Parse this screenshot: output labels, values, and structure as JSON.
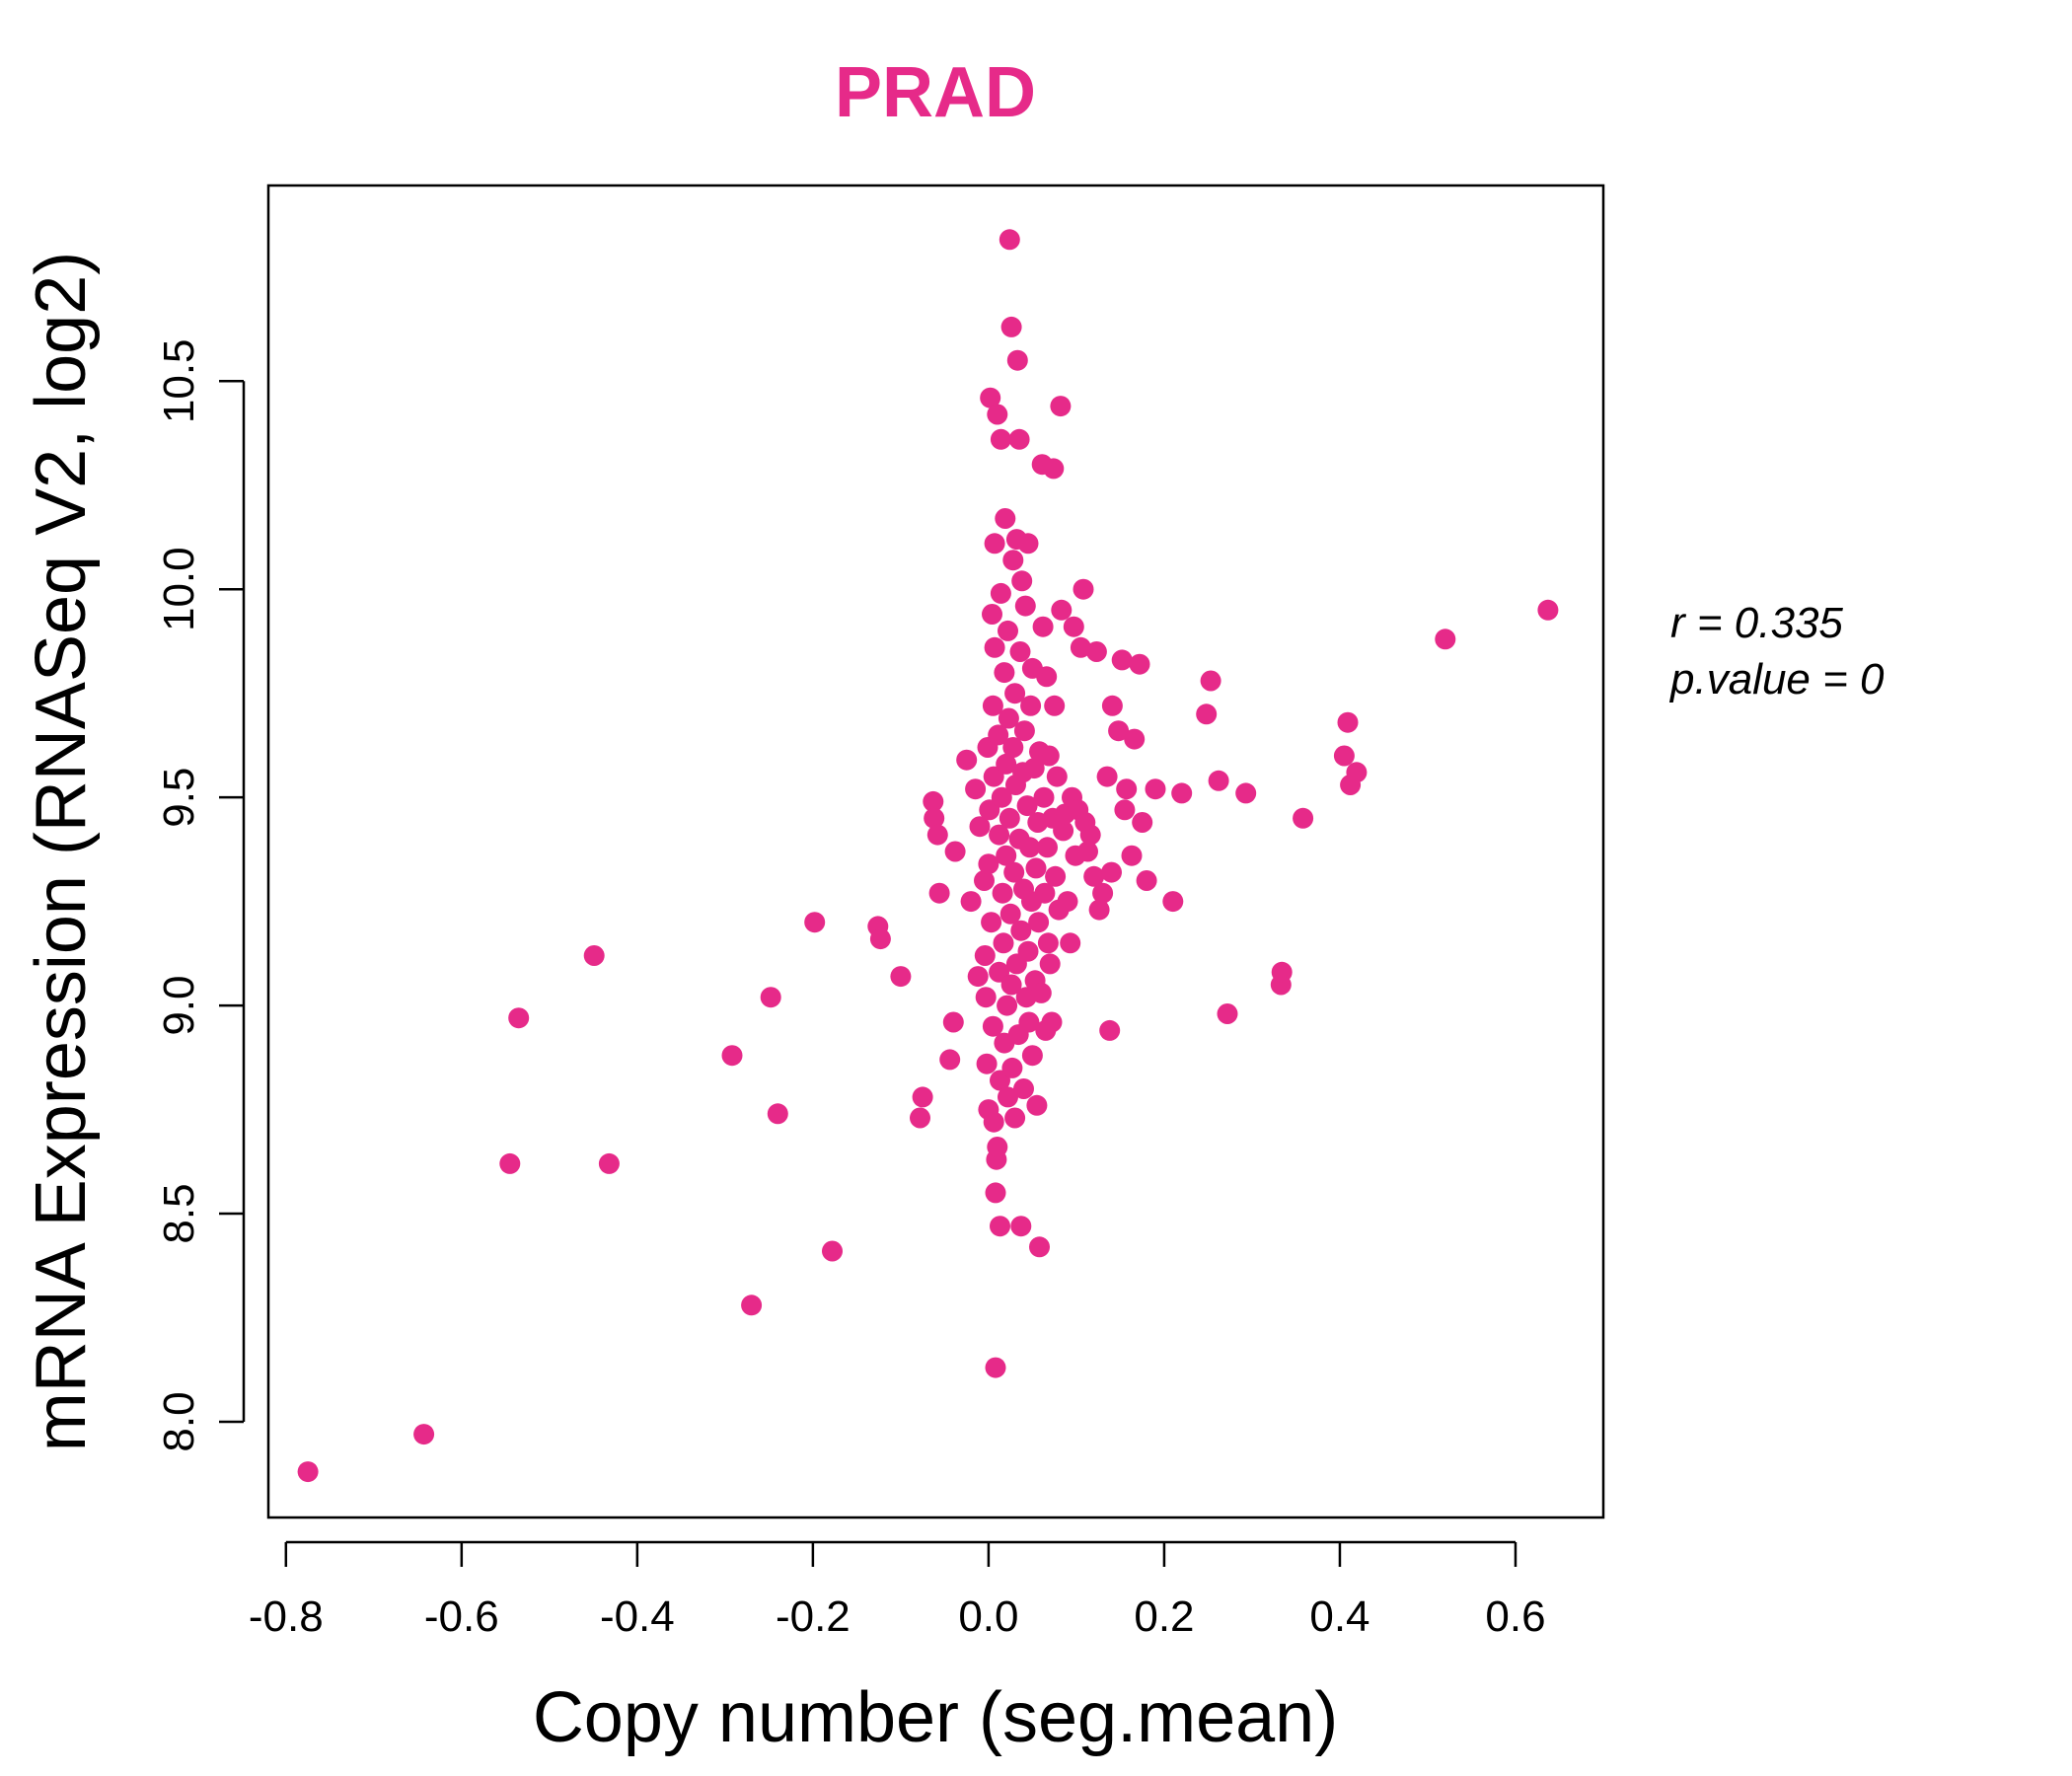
{
  "chart_data": {
    "type": "scatter",
    "title": "PRAD",
    "xlabel": "Copy number (seg.mean)",
    "ylabel": "mRNA Expression (RNASeq V2, log2)",
    "xlim": [
      -0.82,
      0.7
    ],
    "ylim": [
      7.77,
      10.97
    ],
    "xticks": [
      "-0.8",
      "-0.6",
      "-0.4",
      "-0.2",
      "0.0",
      "0.2",
      "0.4",
      "0.6"
    ],
    "yticks": [
      "8.0",
      "8.5",
      "9.0",
      "9.5",
      "10.0",
      "10.5"
    ],
    "grid": false,
    "annotations": {
      "r_label": "r = 0.335",
      "p_label": "p.value = 0"
    },
    "colors": {
      "points": "#e62a89",
      "title": "#e62a89",
      "axes": "#000000"
    },
    "points": [
      [
        -0.775,
        7.88
      ],
      [
        -0.643,
        7.97
      ],
      [
        -0.545,
        8.62
      ],
      [
        -0.535,
        8.97
      ],
      [
        -0.449,
        9.12
      ],
      [
        -0.432,
        8.62
      ],
      [
        -0.292,
        8.88
      ],
      [
        -0.27,
        8.28
      ],
      [
        -0.248,
        9.02
      ],
      [
        -0.24,
        8.74
      ],
      [
        -0.198,
        9.2
      ],
      [
        -0.178,
        8.41
      ],
      [
        -0.126,
        9.19
      ],
      [
        -0.123,
        9.16
      ],
      [
        -0.1,
        9.07
      ],
      [
        -0.078,
        8.73
      ],
      [
        -0.075,
        8.78
      ],
      [
        -0.063,
        9.49
      ],
      [
        -0.062,
        9.45
      ],
      [
        -0.058,
        9.41
      ],
      [
        -0.056,
        9.27
      ],
      [
        -0.044,
        8.87
      ],
      [
        -0.04,
        8.96
      ],
      [
        -0.038,
        9.37
      ],
      [
        -0.025,
        9.59
      ],
      [
        -0.02,
        9.25
      ],
      [
        -0.015,
        9.52
      ],
      [
        -0.012,
        9.07
      ],
      [
        -0.01,
        9.43
      ],
      [
        -0.005,
        9.3
      ],
      [
        -0.004,
        9.12
      ],
      [
        -0.003,
        9.02
      ],
      [
        -0.002,
        8.86
      ],
      [
        -0.001,
        9.62
      ],
      [
        0.0,
        8.75
      ],
      [
        0.0,
        9.34
      ],
      [
        0.001,
        9.47
      ],
      [
        0.002,
        10.46
      ],
      [
        0.003,
        9.2
      ],
      [
        0.004,
        9.94
      ],
      [
        0.005,
        9.72
      ],
      [
        0.005,
        8.95
      ],
      [
        0.006,
        9.55
      ],
      [
        0.006,
        8.72
      ],
      [
        0.007,
        10.11
      ],
      [
        0.007,
        9.86
      ],
      [
        0.008,
        8.55
      ],
      [
        0.008,
        8.13
      ],
      [
        0.009,
        8.63
      ],
      [
        0.01,
        8.66
      ],
      [
        0.01,
        10.42
      ],
      [
        0.011,
        9.65
      ],
      [
        0.012,
        9.41
      ],
      [
        0.012,
        9.08
      ],
      [
        0.013,
        8.82
      ],
      [
        0.013,
        8.47
      ],
      [
        0.014,
        9.99
      ],
      [
        0.014,
        10.36
      ],
      [
        0.015,
        9.5
      ],
      [
        0.016,
        9.27
      ],
      [
        0.017,
        9.15
      ],
      [
        0.018,
        9.8
      ],
      [
        0.018,
        8.91
      ],
      [
        0.019,
        10.17
      ],
      [
        0.02,
        9.58
      ],
      [
        0.02,
        9.36
      ],
      [
        0.021,
        9.0
      ],
      [
        0.022,
        8.78
      ],
      [
        0.022,
        9.9
      ],
      [
        0.023,
        9.69
      ],
      [
        0.024,
        9.45
      ],
      [
        0.024,
        10.84
      ],
      [
        0.025,
        9.22
      ],
      [
        0.026,
        10.63
      ],
      [
        0.026,
        9.05
      ],
      [
        0.027,
        8.85
      ],
      [
        0.028,
        10.07
      ],
      [
        0.028,
        9.62
      ],
      [
        0.029,
        9.32
      ],
      [
        0.03,
        8.73
      ],
      [
        0.03,
        9.75
      ],
      [
        0.031,
        9.53
      ],
      [
        0.032,
        10.12
      ],
      [
        0.032,
        9.1
      ],
      [
        0.033,
        10.55
      ],
      [
        0.034,
        8.93
      ],
      [
        0.035,
        9.4
      ],
      [
        0.035,
        10.36
      ],
      [
        0.036,
        9.85
      ],
      [
        0.037,
        9.18
      ],
      [
        0.037,
        8.47
      ],
      [
        0.038,
        10.02
      ],
      [
        0.039,
        9.56
      ],
      [
        0.04,
        9.28
      ],
      [
        0.04,
        8.8
      ],
      [
        0.041,
        9.66
      ],
      [
        0.042,
        9.96
      ],
      [
        0.043,
        9.02
      ],
      [
        0.044,
        9.48
      ],
      [
        0.045,
        10.11
      ],
      [
        0.045,
        9.13
      ],
      [
        0.046,
        8.96
      ],
      [
        0.047,
        9.38
      ],
      [
        0.048,
        9.72
      ],
      [
        0.049,
        9.25
      ],
      [
        0.05,
        8.88
      ],
      [
        0.05,
        9.81
      ],
      [
        0.052,
        9.57
      ],
      [
        0.053,
        9.06
      ],
      [
        0.054,
        9.33
      ],
      [
        0.055,
        8.76
      ],
      [
        0.056,
        9.44
      ],
      [
        0.057,
        9.2
      ],
      [
        0.058,
        9.61
      ],
      [
        0.058,
        8.42
      ],
      [
        0.06,
        9.03
      ],
      [
        0.061,
        10.3
      ],
      [
        0.062,
        9.91
      ],
      [
        0.063,
        9.5
      ],
      [
        0.064,
        9.27
      ],
      [
        0.065,
        8.94
      ],
      [
        0.066,
        9.79
      ],
      [
        0.067,
        9.38
      ],
      [
        0.068,
        9.15
      ],
      [
        0.069,
        9.6
      ],
      [
        0.07,
        9.1
      ],
      [
        0.072,
        8.96
      ],
      [
        0.073,
        9.45
      ],
      [
        0.074,
        10.29
      ],
      [
        0.075,
        9.72
      ],
      [
        0.076,
        9.31
      ],
      [
        0.078,
        9.55
      ],
      [
        0.08,
        9.23
      ],
      [
        0.082,
        10.44
      ],
      [
        0.083,
        9.95
      ],
      [
        0.085,
        9.42
      ],
      [
        0.087,
        9.46
      ],
      [
        0.09,
        9.25
      ],
      [
        0.093,
        9.15
      ],
      [
        0.095,
        9.5
      ],
      [
        0.097,
        9.91
      ],
      [
        0.099,
        9.36
      ],
      [
        0.102,
        9.47
      ],
      [
        0.105,
        9.86
      ],
      [
        0.108,
        10.0
      ],
      [
        0.11,
        9.44
      ],
      [
        0.113,
        9.37
      ],
      [
        0.116,
        9.41
      ],
      [
        0.12,
        9.31
      ],
      [
        0.123,
        9.85
      ],
      [
        0.126,
        9.23
      ],
      [
        0.13,
        9.27
      ],
      [
        0.135,
        9.55
      ],
      [
        0.138,
        8.94
      ],
      [
        0.14,
        9.32
      ],
      [
        0.141,
        9.72
      ],
      [
        0.148,
        9.66
      ],
      [
        0.152,
        9.83
      ],
      [
        0.155,
        9.47
      ],
      [
        0.157,
        9.52
      ],
      [
        0.163,
        9.36
      ],
      [
        0.166,
        9.64
      ],
      [
        0.172,
        9.82
      ],
      [
        0.175,
        9.44
      ],
      [
        0.18,
        9.3
      ],
      [
        0.19,
        9.52
      ],
      [
        0.21,
        9.25
      ],
      [
        0.22,
        9.51
      ],
      [
        0.248,
        9.7
      ],
      [
        0.253,
        9.78
      ],
      [
        0.262,
        9.54
      ],
      [
        0.272,
        8.98
      ],
      [
        0.293,
        9.51
      ],
      [
        0.333,
        9.05
      ],
      [
        0.334,
        9.08
      ],
      [
        0.358,
        9.45
      ],
      [
        0.405,
        9.6
      ],
      [
        0.409,
        9.68
      ],
      [
        0.412,
        9.53
      ],
      [
        0.419,
        9.56
      ],
      [
        0.52,
        9.88
      ],
      [
        0.637,
        9.95
      ]
    ]
  }
}
